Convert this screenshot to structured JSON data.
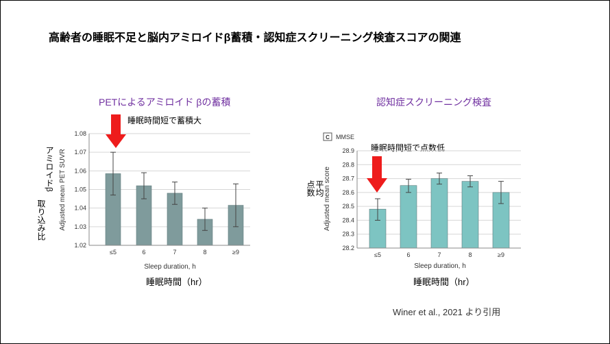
{
  "title": "高齢者の睡眠不足と脳内アミロイドβ蓄積・認知症スクリーニング検査スコアの関連",
  "citation": "Winer et al., 2021 より引用",
  "colors": {
    "bar_left": "#7f9b9c",
    "bar_right": "#7dc4c2",
    "arrow": "#ee1c1c",
    "subtitle": "#7030a0"
  },
  "left": {
    "subtitle": "PETによるアミロイド βの蓄積",
    "annotation": "睡眠時間短で蓄積大",
    "jp_ylabel_line1": "アミロイドβ",
    "jp_ylabel_line2": "取り込み比",
    "jp_xlabel": "睡眠時間（hr）"
  },
  "right": {
    "subtitle": "認知症スクリーニング検査",
    "annotation": "睡眠時間短で点数低",
    "jp_ylabel_line1": "平均",
    "jp_ylabel_line2": "点数",
    "jp_xlabel": "睡眠時間（hr）"
  },
  "chart_data": [
    {
      "type": "bar",
      "title": "",
      "panel_label": "",
      "xlabel": "Sleep duration, h",
      "ylabel": "Adjusted mean PET SUVR",
      "categories": [
        "≤5",
        "6",
        "7",
        "8",
        "≥9"
      ],
      "values": [
        1.0585,
        1.052,
        1.048,
        1.034,
        1.0415
      ],
      "error_low": [
        1.047,
        1.045,
        1.042,
        1.028,
        1.03
      ],
      "error_high": [
        1.07,
        1.059,
        1.054,
        1.04,
        1.053
      ],
      "ylim": [
        1.02,
        1.08
      ],
      "yticks": [
        "1.02",
        "1.03",
        "1.04",
        "1.05",
        "1.06",
        "1.07",
        "1.08"
      ],
      "grid": true
    },
    {
      "type": "bar",
      "title": "MMSE",
      "panel_label": "C",
      "xlabel": "Sleep duration, h",
      "ylabel": "Adjusted mean score",
      "categories": [
        "≤5",
        "6",
        "7",
        "8",
        "≥9"
      ],
      "values": [
        28.48,
        28.65,
        28.7,
        28.68,
        28.6
      ],
      "error_low": [
        28.4,
        28.6,
        28.66,
        28.64,
        28.52
      ],
      "error_high": [
        28.555,
        28.695,
        28.74,
        28.72,
        28.68
      ],
      "ylim": [
        28.2,
        28.9
      ],
      "yticks": [
        "28.2",
        "28.3",
        "28.4",
        "28.5",
        "28.6",
        "28.7",
        "28.8",
        "28.9"
      ],
      "grid": true
    }
  ]
}
